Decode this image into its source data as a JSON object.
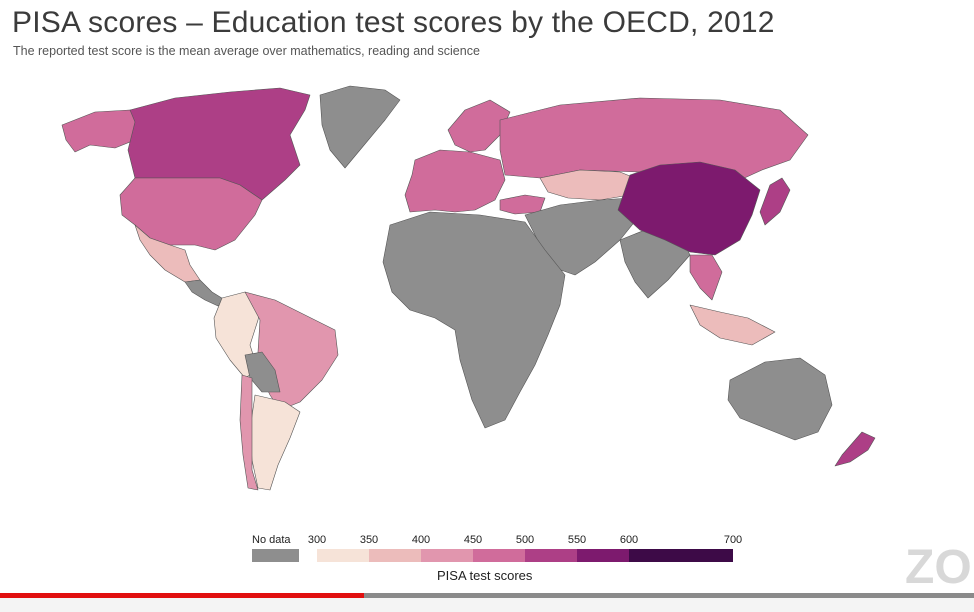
{
  "title": "PISA scores – Education test scores by the OECD, 2012",
  "subtitle": "The reported test score is the mean average over mathematics, reading and science",
  "legend": {
    "title": "PISA test scores",
    "no_data_label": "No data",
    "no_data_color": "#8e8e8e",
    "ticks": [
      "300",
      "350",
      "400",
      "450",
      "500",
      "550",
      "600",
      "700"
    ],
    "bins": [
      {
        "from": 300,
        "to": 350,
        "color": "#f6e3d8"
      },
      {
        "from": 350,
        "to": 400,
        "color": "#ecbcbb"
      },
      {
        "from": 400,
        "to": 450,
        "color": "#e196ae"
      },
      {
        "from": 450,
        "to": 500,
        "color": "#d06c9b"
      },
      {
        "from": 500,
        "to": 550,
        "color": "#ad3f86"
      },
      {
        "from": 550,
        "to": 600,
        "color": "#7d1a6e"
      },
      {
        "from": 600,
        "to": 700,
        "color": "#3d0a47"
      }
    ]
  },
  "regions": [
    {
      "name": "canada",
      "color": "#ad3f86"
    },
    {
      "name": "alaska",
      "color": "#d06c9b"
    },
    {
      "name": "greenland",
      "color": "#8e8e8e"
    },
    {
      "name": "usa",
      "color": "#d06c9b"
    },
    {
      "name": "mexico",
      "color": "#ecbcbb"
    },
    {
      "name": "central-america",
      "color": "#8e8e8e"
    },
    {
      "name": "colombia-peru",
      "color": "#f6e3d8"
    },
    {
      "name": "brazil",
      "color": "#e196ae"
    },
    {
      "name": "bolivia",
      "color": "#8e8e8e"
    },
    {
      "name": "argentina",
      "color": "#f6e3d8"
    },
    {
      "name": "chile",
      "color": "#e196ae"
    },
    {
      "name": "europe-west",
      "color": "#d06c9b"
    },
    {
      "name": "scandinavia",
      "color": "#d06c9b"
    },
    {
      "name": "russia",
      "color": "#d06c9b"
    },
    {
      "name": "kazakhstan",
      "color": "#ecbcbb"
    },
    {
      "name": "turkey",
      "color": "#d06c9b"
    },
    {
      "name": "middle-east",
      "color": "#8e8e8e"
    },
    {
      "name": "africa",
      "color": "#8e8e8e"
    },
    {
      "name": "india",
      "color": "#8e8e8e"
    },
    {
      "name": "china",
      "color": "#7d1a6e"
    },
    {
      "name": "japan",
      "color": "#ad3f86"
    },
    {
      "name": "southeast-asia",
      "color": "#d06c9b"
    },
    {
      "name": "indonesia",
      "color": "#ecbcbb"
    },
    {
      "name": "australia",
      "color": "#8e8e8e"
    },
    {
      "name": "new-zealand",
      "color": "#ad3f86"
    }
  ],
  "video": {
    "progress": 0.374,
    "watermark": "ZO"
  }
}
